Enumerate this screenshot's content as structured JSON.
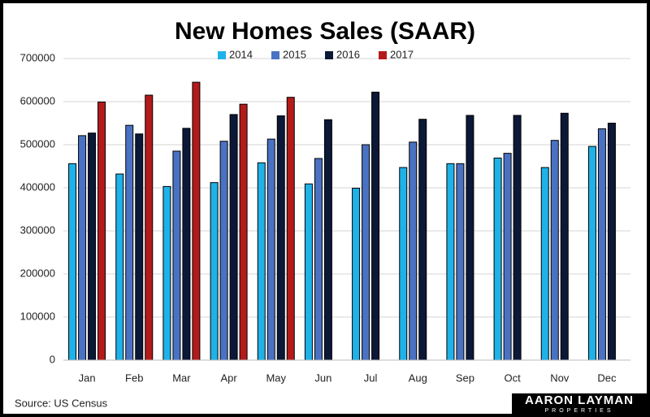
{
  "chart_data": {
    "type": "bar",
    "title": "New Homes Sales (SAAR)",
    "categories": [
      "Jan",
      "Feb",
      "Mar",
      "Apr",
      "May",
      "Jun",
      "Jul",
      "Aug",
      "Sep",
      "Oct",
      "Nov",
      "Dec"
    ],
    "series": [
      {
        "name": "2014",
        "color": "#1eb2e8",
        "values": [
          456000,
          432000,
          403000,
          412000,
          458000,
          409000,
          399000,
          447000,
          456000,
          469000,
          447000,
          496000
        ]
      },
      {
        "name": "2015",
        "color": "#4a72c2",
        "values": [
          521000,
          545000,
          485000,
          508000,
          513000,
          468000,
          500000,
          506000,
          456000,
          480000,
          510000,
          537000
        ]
      },
      {
        "name": "2016",
        "color": "#0c1838",
        "values": [
          527000,
          525000,
          538000,
          570000,
          567000,
          558000,
          622000,
          559000,
          568000,
          568000,
          573000,
          550000
        ]
      },
      {
        "name": "2017",
        "color": "#b41a1a",
        "values": [
          599000,
          615000,
          645000,
          594000,
          610000,
          null,
          null,
          null,
          null,
          null,
          null,
          null
        ]
      }
    ],
    "ylim": [
      0,
      700000
    ],
    "yticks": [
      0,
      100000,
      200000,
      300000,
      400000,
      500000,
      600000,
      700000
    ],
    "grid": true,
    "legend": "top",
    "source": "Source: US Census",
    "logo": {
      "name": "AARON LAYMAN",
      "sub": "PROPERTIES"
    }
  }
}
